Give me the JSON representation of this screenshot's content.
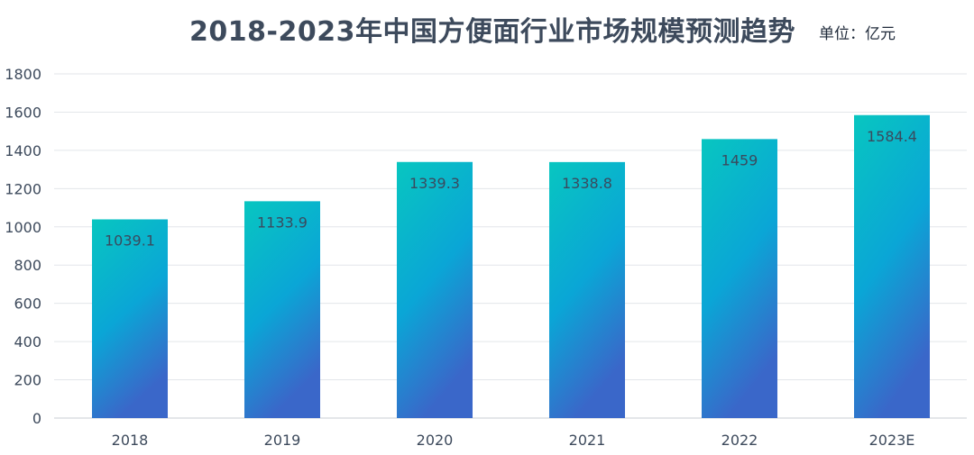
{
  "chart_data": {
    "type": "bar",
    "title": "2018-2023年中国方便面行业市场规模预测趋势",
    "unit_label": "单位：亿元",
    "xlabel": "",
    "ylabel": "",
    "categories": [
      "2018",
      "2019",
      "2020",
      "2021",
      "2022",
      "2023E"
    ],
    "values": [
      1039.1,
      1133.9,
      1339.3,
      1338.8,
      1459,
      1584.4
    ],
    "value_labels": [
      "1039.1",
      "1133.9",
      "1339.3",
      "1338.8",
      "1459",
      "1584.4"
    ],
    "ylim": [
      0,
      1800
    ],
    "yticks": [
      0,
      200,
      400,
      600,
      800,
      1000,
      1200,
      1400,
      1600,
      1800
    ],
    "grid": true,
    "colors": {
      "bar_top": "#08c6c0",
      "bar_mid": "#0aa6d6",
      "bar_bottom": "#3a67c9",
      "grid": "#e3e6ea",
      "axis": "#c9cdd3"
    }
  }
}
